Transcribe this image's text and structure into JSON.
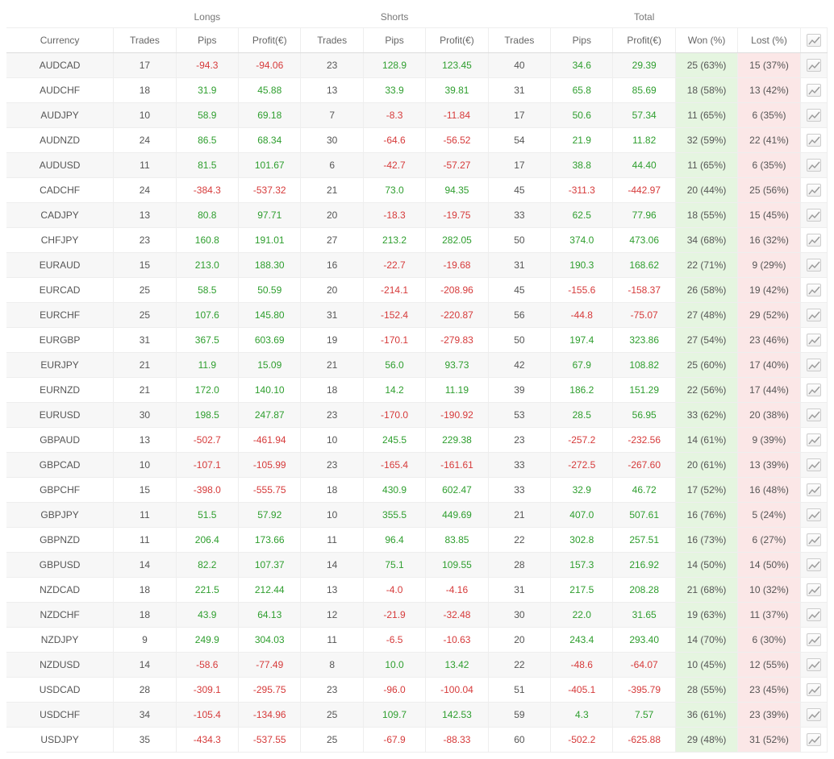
{
  "groupHeaders": {
    "longs": "Longs",
    "shorts": "Shorts",
    "total": "Total"
  },
  "columns": {
    "currency": "Currency",
    "trades": "Trades",
    "pips": "Pips",
    "profit": "Profit(€)",
    "won": "Won (%)",
    "lost": "Lost (%)"
  },
  "colors": {
    "positive": "#2e9e2e",
    "negative": "#d63a3a",
    "neutral": "#555555",
    "won_bg": "#e5f5e0",
    "lost_bg": "#fbe7e7",
    "row_alt": "#f7f7f7",
    "border": "#eeeeee"
  },
  "icon_name": "chart-line-icon",
  "rows": [
    {
      "currency": "AUDCAD",
      "l_trades": 17,
      "l_pips": -94.3,
      "l_profit": -94.06,
      "s_trades": 23,
      "s_pips": 128.9,
      "s_profit": 123.45,
      "t_trades": 40,
      "t_pips": 34.6,
      "t_profit": 29.39,
      "won": "25 (63%)",
      "lost": "15 (37%)"
    },
    {
      "currency": "AUDCHF",
      "l_trades": 18,
      "l_pips": 31.9,
      "l_profit": 45.88,
      "s_trades": 13,
      "s_pips": 33.9,
      "s_profit": 39.81,
      "t_trades": 31,
      "t_pips": 65.8,
      "t_profit": 85.69,
      "won": "18 (58%)",
      "lost": "13 (42%)"
    },
    {
      "currency": "AUDJPY",
      "l_trades": 10,
      "l_pips": 58.9,
      "l_profit": 69.18,
      "s_trades": 7,
      "s_pips": -8.3,
      "s_profit": -11.84,
      "t_trades": 17,
      "t_pips": 50.6,
      "t_profit": 57.34,
      "won": "11 (65%)",
      "lost": "6 (35%)"
    },
    {
      "currency": "AUDNZD",
      "l_trades": 24,
      "l_pips": 86.5,
      "l_profit": 68.34,
      "s_trades": 30,
      "s_pips": -64.6,
      "s_profit": -56.52,
      "t_trades": 54,
      "t_pips": 21.9,
      "t_profit": 11.82,
      "won": "32 (59%)",
      "lost": "22 (41%)"
    },
    {
      "currency": "AUDUSD",
      "l_trades": 11,
      "l_pips": 81.5,
      "l_profit": 101.67,
      "s_trades": 6,
      "s_pips": -42.7,
      "s_profit": -57.27,
      "t_trades": 17,
      "t_pips": 38.8,
      "t_profit": 44.4,
      "won": "11 (65%)",
      "lost": "6 (35%)"
    },
    {
      "currency": "CADCHF",
      "l_trades": 24,
      "l_pips": -384.3,
      "l_profit": -537.32,
      "s_trades": 21,
      "s_pips": 73.0,
      "s_profit": 94.35,
      "t_trades": 45,
      "t_pips": -311.3,
      "t_profit": -442.97,
      "won": "20 (44%)",
      "lost": "25 (56%)"
    },
    {
      "currency": "CADJPY",
      "l_trades": 13,
      "l_pips": 80.8,
      "l_profit": 97.71,
      "s_trades": 20,
      "s_pips": -18.3,
      "s_profit": -19.75,
      "t_trades": 33,
      "t_pips": 62.5,
      "t_profit": 77.96,
      "won": "18 (55%)",
      "lost": "15 (45%)"
    },
    {
      "currency": "CHFJPY",
      "l_trades": 23,
      "l_pips": 160.8,
      "l_profit": 191.01,
      "s_trades": 27,
      "s_pips": 213.2,
      "s_profit": 282.05,
      "t_trades": 50,
      "t_pips": 374.0,
      "t_profit": 473.06,
      "won": "34 (68%)",
      "lost": "16 (32%)"
    },
    {
      "currency": "EURAUD",
      "l_trades": 15,
      "l_pips": 213.0,
      "l_profit": 188.3,
      "s_trades": 16,
      "s_pips": -22.7,
      "s_profit": -19.68,
      "t_trades": 31,
      "t_pips": 190.3,
      "t_profit": 168.62,
      "won": "22 (71%)",
      "lost": "9 (29%)"
    },
    {
      "currency": "EURCAD",
      "l_trades": 25,
      "l_pips": 58.5,
      "l_profit": 50.59,
      "s_trades": 20,
      "s_pips": -214.1,
      "s_profit": -208.96,
      "t_trades": 45,
      "t_pips": -155.6,
      "t_profit": -158.37,
      "won": "26 (58%)",
      "lost": "19 (42%)"
    },
    {
      "currency": "EURCHF",
      "l_trades": 25,
      "l_pips": 107.6,
      "l_profit": 145.8,
      "s_trades": 31,
      "s_pips": -152.4,
      "s_profit": -220.87,
      "t_trades": 56,
      "t_pips": -44.8,
      "t_profit": -75.07,
      "won": "27 (48%)",
      "lost": "29 (52%)"
    },
    {
      "currency": "EURGBP",
      "l_trades": 31,
      "l_pips": 367.5,
      "l_profit": 603.69,
      "s_trades": 19,
      "s_pips": -170.1,
      "s_profit": -279.83,
      "t_trades": 50,
      "t_pips": 197.4,
      "t_profit": 323.86,
      "won": "27 (54%)",
      "lost": "23 (46%)"
    },
    {
      "currency": "EURJPY",
      "l_trades": 21,
      "l_pips": 11.9,
      "l_profit": 15.09,
      "s_trades": 21,
      "s_pips": 56.0,
      "s_profit": 93.73,
      "t_trades": 42,
      "t_pips": 67.9,
      "t_profit": 108.82,
      "won": "25 (60%)",
      "lost": "17 (40%)"
    },
    {
      "currency": "EURNZD",
      "l_trades": 21,
      "l_pips": 172.0,
      "l_profit": 140.1,
      "s_trades": 18,
      "s_pips": 14.2,
      "s_profit": 11.19,
      "t_trades": 39,
      "t_pips": 186.2,
      "t_profit": 151.29,
      "won": "22 (56%)",
      "lost": "17 (44%)"
    },
    {
      "currency": "EURUSD",
      "l_trades": 30,
      "l_pips": 198.5,
      "l_profit": 247.87,
      "s_trades": 23,
      "s_pips": -170.0,
      "s_profit": -190.92,
      "t_trades": 53,
      "t_pips": 28.5,
      "t_profit": 56.95,
      "won": "33 (62%)",
      "lost": "20 (38%)"
    },
    {
      "currency": "GBPAUD",
      "l_trades": 13,
      "l_pips": -502.7,
      "l_profit": -461.94,
      "s_trades": 10,
      "s_pips": 245.5,
      "s_profit": 229.38,
      "t_trades": 23,
      "t_pips": -257.2,
      "t_profit": -232.56,
      "won": "14 (61%)",
      "lost": "9 (39%)"
    },
    {
      "currency": "GBPCAD",
      "l_trades": 10,
      "l_pips": -107.1,
      "l_profit": -105.99,
      "s_trades": 23,
      "s_pips": -165.4,
      "s_profit": -161.61,
      "t_trades": 33,
      "t_pips": -272.5,
      "t_profit": -267.6,
      "won": "20 (61%)",
      "lost": "13 (39%)"
    },
    {
      "currency": "GBPCHF",
      "l_trades": 15,
      "l_pips": -398.0,
      "l_profit": -555.75,
      "s_trades": 18,
      "s_pips": 430.9,
      "s_profit": 602.47,
      "t_trades": 33,
      "t_pips": 32.9,
      "t_profit": 46.72,
      "won": "17 (52%)",
      "lost": "16 (48%)"
    },
    {
      "currency": "GBPJPY",
      "l_trades": 11,
      "l_pips": 51.5,
      "l_profit": 57.92,
      "s_trades": 10,
      "s_pips": 355.5,
      "s_profit": 449.69,
      "t_trades": 21,
      "t_pips": 407.0,
      "t_profit": 507.61,
      "won": "16 (76%)",
      "lost": "5 (24%)"
    },
    {
      "currency": "GBPNZD",
      "l_trades": 11,
      "l_pips": 206.4,
      "l_profit": 173.66,
      "s_trades": 11,
      "s_pips": 96.4,
      "s_profit": 83.85,
      "t_trades": 22,
      "t_pips": 302.8,
      "t_profit": 257.51,
      "won": "16 (73%)",
      "lost": "6 (27%)"
    },
    {
      "currency": "GBPUSD",
      "l_trades": 14,
      "l_pips": 82.2,
      "l_profit": 107.37,
      "s_trades": 14,
      "s_pips": 75.1,
      "s_profit": 109.55,
      "t_trades": 28,
      "t_pips": 157.3,
      "t_profit": 216.92,
      "won": "14 (50%)",
      "lost": "14 (50%)"
    },
    {
      "currency": "NZDCAD",
      "l_trades": 18,
      "l_pips": 221.5,
      "l_profit": 212.44,
      "s_trades": 13,
      "s_pips": -4.0,
      "s_profit": -4.16,
      "t_trades": 31,
      "t_pips": 217.5,
      "t_profit": 208.28,
      "won": "21 (68%)",
      "lost": "10 (32%)"
    },
    {
      "currency": "NZDCHF",
      "l_trades": 18,
      "l_pips": 43.9,
      "l_profit": 64.13,
      "s_trades": 12,
      "s_pips": -21.9,
      "s_profit": -32.48,
      "t_trades": 30,
      "t_pips": 22.0,
      "t_profit": 31.65,
      "won": "19 (63%)",
      "lost": "11 (37%)"
    },
    {
      "currency": "NZDJPY",
      "l_trades": 9,
      "l_pips": 249.9,
      "l_profit": 304.03,
      "s_trades": 11,
      "s_pips": -6.5,
      "s_profit": -10.63,
      "t_trades": 20,
      "t_pips": 243.4,
      "t_profit": 293.4,
      "won": "14 (70%)",
      "lost": "6 (30%)"
    },
    {
      "currency": "NZDUSD",
      "l_trades": 14,
      "l_pips": -58.6,
      "l_profit": -77.49,
      "s_trades": 8,
      "s_pips": 10.0,
      "s_profit": 13.42,
      "t_trades": 22,
      "t_pips": -48.6,
      "t_profit": -64.07,
      "won": "10 (45%)",
      "lost": "12 (55%)"
    },
    {
      "currency": "USDCAD",
      "l_trades": 28,
      "l_pips": -309.1,
      "l_profit": -295.75,
      "s_trades": 23,
      "s_pips": -96.0,
      "s_profit": -100.04,
      "t_trades": 51,
      "t_pips": -405.1,
      "t_profit": -395.79,
      "won": "28 (55%)",
      "lost": "23 (45%)"
    },
    {
      "currency": "USDCHF",
      "l_trades": 34,
      "l_pips": -105.4,
      "l_profit": -134.96,
      "s_trades": 25,
      "s_pips": 109.7,
      "s_profit": 142.53,
      "t_trades": 59,
      "t_pips": 4.3,
      "t_profit": 7.57,
      "won": "36 (61%)",
      "lost": "23 (39%)"
    },
    {
      "currency": "USDJPY",
      "l_trades": 35,
      "l_pips": -434.3,
      "l_profit": -537.55,
      "s_trades": 25,
      "s_pips": -67.9,
      "s_profit": -88.33,
      "t_trades": 60,
      "t_pips": -502.2,
      "t_profit": -625.88,
      "won": "29 (48%)",
      "lost": "31 (52%)"
    }
  ]
}
